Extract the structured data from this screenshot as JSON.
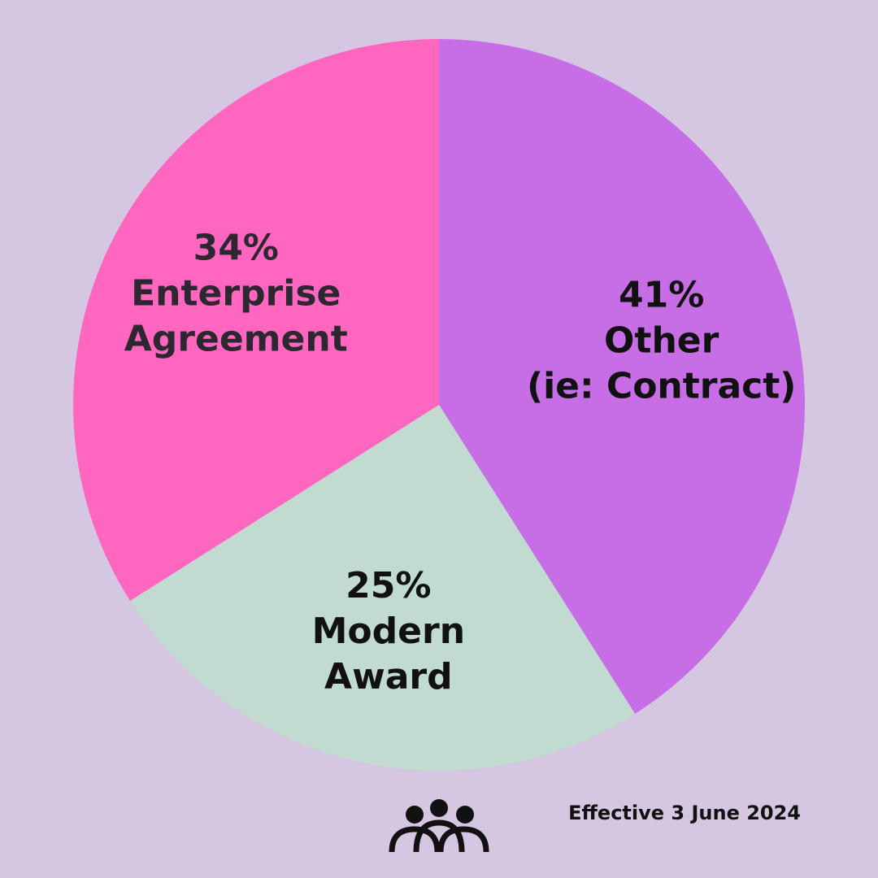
{
  "chart_data": {
    "type": "pie",
    "slices": [
      {
        "value": 41,
        "percent_label": "41%",
        "label_lines": [
          "Other",
          "(ie: Contract)"
        ],
        "color": "#c76de6",
        "text_color": "#111111"
      },
      {
        "value": 25,
        "percent_label": "25%",
        "label_lines": [
          "Modern",
          "Award"
        ],
        "color": "#c1dbd1",
        "text_color": "#111111"
      },
      {
        "value": 34,
        "percent_label": "34%",
        "label_lines": [
          "Enterprise",
          "Agreement"
        ],
        "color": "#ff66bf",
        "text_color": "#2c2730"
      }
    ],
    "start": "12 o'clock",
    "direction": "clockwise"
  },
  "footer": {
    "effective_text": "Effective 3 June 2024",
    "logo_icon": "three-people-icon"
  },
  "colors": {
    "background": "#d5c6e1"
  }
}
